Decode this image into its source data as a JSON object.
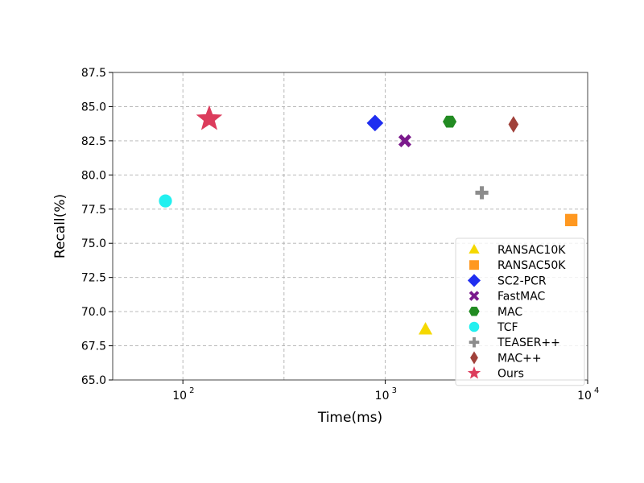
{
  "chart_data": {
    "type": "scatter",
    "title": "",
    "xlabel": "Time(ms)",
    "ylabel": "Recall(%)",
    "xscale": "log",
    "xlim": [
      45,
      10000
    ],
    "ylim": [
      65.0,
      87.5
    ],
    "xtick_labels": [
      "10",
      "10",
      "10"
    ],
    "xtick_exponents": [
      "2",
      "3",
      "4"
    ],
    "xtick_values": [
      100,
      1000,
      10000
    ],
    "minor_grid_x": [
      316
    ],
    "ytick_values": [
      65.0,
      67.5,
      70.0,
      72.5,
      75.0,
      77.5,
      80.0,
      82.5,
      85.0,
      87.5
    ],
    "ytick_labels": [
      "65.0",
      "67.5",
      "70.0",
      "72.5",
      "75.0",
      "77.5",
      "80.0",
      "82.5",
      "85.0",
      "87.5"
    ],
    "grid": true,
    "legend_position": "lower-right",
    "series": [
      {
        "name": "RANSAC10K",
        "marker": "triangle",
        "color": "#f5d800",
        "x": 1580,
        "y": 68.7
      },
      {
        "name": "RANSAC50K",
        "marker": "square",
        "color": "#ff9820",
        "x": 8300,
        "y": 76.7
      },
      {
        "name": "SC2-PCR",
        "marker": "diamond",
        "color": "#1f2ef0",
        "x": 890,
        "y": 83.8
      },
      {
        "name": "FastMAC",
        "marker": "x",
        "color": "#7b1a8c",
        "x": 1250,
        "y": 82.5
      },
      {
        "name": "MAC",
        "marker": "hexagon",
        "color": "#228b22",
        "x": 2080,
        "y": 83.9
      },
      {
        "name": "TCF",
        "marker": "circle",
        "color": "#22f0f0",
        "x": 82,
        "y": 78.1
      },
      {
        "name": "TEASER++",
        "marker": "plus",
        "color": "#8c8c8c",
        "x": 3000,
        "y": 78.7
      },
      {
        "name": "MAC++",
        "marker": "thin-diamond",
        "color": "#a0413a",
        "x": 4300,
        "y": 83.7
      },
      {
        "name": "Ours",
        "marker": "star",
        "color": "#dc3c5c",
        "x": 135,
        "y": 84.1
      }
    ]
  }
}
